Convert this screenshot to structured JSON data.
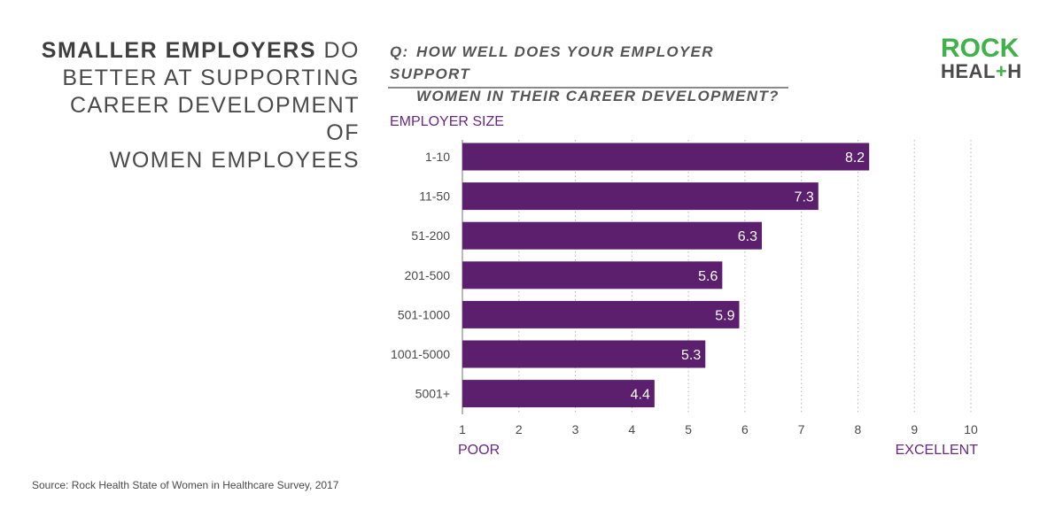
{
  "headline": {
    "strong": "SMALLER EMPLOYERS",
    "rest_line1": " DO",
    "line2": "BETTER AT SUPPORTING",
    "line3": "CAREER DEVELOPMENT OF",
    "line4": "WOMEN EMPLOYEES"
  },
  "question": {
    "prefix": "Q:",
    "line1": "HOW WELL DOES YOUR EMPLOYER SUPPORT",
    "line2": "WOMEN IN THEIR CAREER DEVELOPMENT?"
  },
  "logo": {
    "line1": "ROCK",
    "line2_a": "HEAL",
    "line2_plus": "+",
    "line2_b": "H"
  },
  "colors": {
    "bar": "#5b1f6e",
    "accent_text": "#6a2784",
    "brand_green": "#3fb24a",
    "grid": "#b5b5b5"
  },
  "chart_data": {
    "type": "bar",
    "orientation": "horizontal",
    "ylabel": "EMPLOYER SIZE",
    "categories": [
      "1-10",
      "11-50",
      "51-200",
      "201-500",
      "501-1000",
      "1001-5000",
      "5001+"
    ],
    "values": [
      8.2,
      7.3,
      6.3,
      5.6,
      5.9,
      5.3,
      4.4
    ],
    "value_labels": [
      "8.2",
      "7.3",
      "6.3",
      "5.6",
      "5.9",
      "5.3",
      "4.4"
    ],
    "xlim": [
      1,
      10
    ],
    "x_ticks": [
      1,
      2,
      3,
      4,
      5,
      6,
      7,
      8,
      9,
      10
    ],
    "x_tick_labels": [
      "1",
      "2",
      "3",
      "4",
      "5",
      "6",
      "7",
      "8",
      "9",
      "10"
    ],
    "x_min_label": "POOR",
    "x_max_label": "EXCELLENT",
    "grid": "vertical-dotted"
  },
  "source": "Source: Rock Health State of Women in Healthcare Survey, 2017"
}
